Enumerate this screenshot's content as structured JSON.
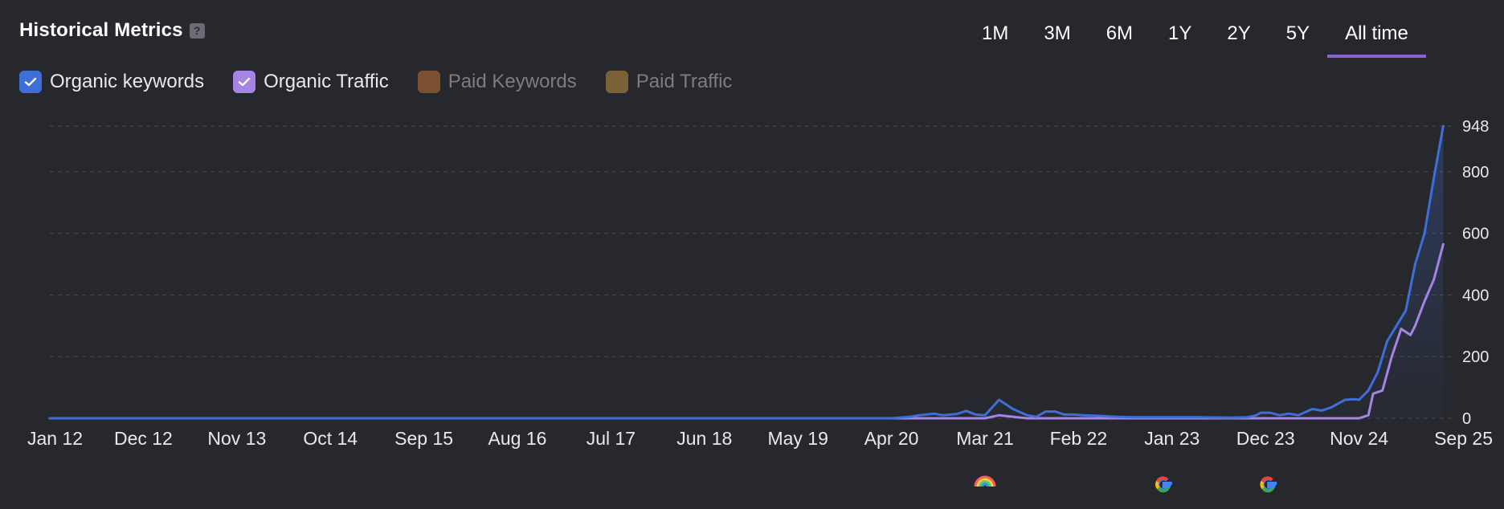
{
  "header": {
    "title": "Historical Metrics",
    "help_glyph": "?"
  },
  "ranges": [
    {
      "label": "1M",
      "active": false
    },
    {
      "label": "3M",
      "active": false
    },
    {
      "label": "6M",
      "active": false
    },
    {
      "label": "1Y",
      "active": false
    },
    {
      "label": "2Y",
      "active": false
    },
    {
      "label": "5Y",
      "active": false
    },
    {
      "label": "All time",
      "active": true
    }
  ],
  "legend": [
    {
      "label": "Organic keywords",
      "checked": true,
      "color": "#3e6fd8"
    },
    {
      "label": "Organic Traffic",
      "checked": true,
      "color": "#a684e6"
    },
    {
      "label": "Paid Keywords",
      "checked": false,
      "color": "#7a5030"
    },
    {
      "label": "Paid Traffic",
      "checked": false,
      "color": "#7a6138"
    }
  ],
  "events": [
    {
      "icon": "rainbow-icon",
      "at": "Mar 21"
    },
    {
      "icon": "google-icon",
      "at": "Jan 23"
    },
    {
      "icon": "google-icon",
      "at": "Dec 23"
    }
  ],
  "chart_data": {
    "type": "line",
    "x_ticks": [
      "Jan 12",
      "Dec 12",
      "Nov 13",
      "Oct 14",
      "Sep 15",
      "Aug 16",
      "Jul 17",
      "Jun 18",
      "May 19",
      "Apr 20",
      "Mar 21",
      "Feb 22",
      "Jan 23",
      "Dec 23",
      "Nov 24",
      "Sep 25"
    ],
    "y_ticks": [
      0,
      200,
      400,
      600,
      800,
      948
    ],
    "ylim": [
      0,
      948
    ],
    "grid": true,
    "series": [
      {
        "name": "Organic keywords",
        "color": "#3e6fd8",
        "points": [
          [
            0,
            0
          ],
          [
            9.0,
            0
          ],
          [
            9.2,
            5
          ],
          [
            9.3,
            10
          ],
          [
            9.45,
            15
          ],
          [
            9.55,
            10
          ],
          [
            9.7,
            14
          ],
          [
            9.8,
            24
          ],
          [
            9.9,
            12
          ],
          [
            10.0,
            10
          ],
          [
            10.15,
            60
          ],
          [
            10.3,
            30
          ],
          [
            10.45,
            10
          ],
          [
            10.55,
            5
          ],
          [
            10.65,
            22
          ],
          [
            10.75,
            22
          ],
          [
            10.85,
            12
          ],
          [
            10.95,
            12
          ],
          [
            11.05,
            10
          ],
          [
            11.2,
            8
          ],
          [
            11.4,
            5
          ],
          [
            11.6,
            3
          ],
          [
            11.8,
            3
          ],
          [
            12.0,
            3
          ],
          [
            12.3,
            3
          ],
          [
            12.6,
            2
          ],
          [
            12.8,
            3
          ],
          [
            12.9,
            10
          ],
          [
            12.95,
            18
          ],
          [
            13.05,
            18
          ],
          [
            13.15,
            10
          ],
          [
            13.25,
            15
          ],
          [
            13.35,
            10
          ],
          [
            13.5,
            30
          ],
          [
            13.6,
            25
          ],
          [
            13.7,
            35
          ],
          [
            13.85,
            60
          ],
          [
            13.95,
            62
          ],
          [
            14.0,
            60
          ],
          [
            14.1,
            90
          ],
          [
            14.2,
            150
          ],
          [
            14.3,
            250
          ],
          [
            14.4,
            300
          ],
          [
            14.5,
            350
          ],
          [
            14.6,
            500
          ],
          [
            14.7,
            600
          ],
          [
            14.8,
            780
          ],
          [
            14.9,
            948
          ]
        ]
      },
      {
        "name": "Organic Traffic",
        "color": "#a684e6",
        "points": [
          [
            0,
            0
          ],
          [
            10.0,
            0
          ],
          [
            10.15,
            10
          ],
          [
            10.3,
            5
          ],
          [
            10.45,
            0
          ],
          [
            14.0,
            0
          ],
          [
            14.05,
            5
          ],
          [
            14.1,
            10
          ],
          [
            14.15,
            80
          ],
          [
            14.25,
            90
          ],
          [
            14.35,
            200
          ],
          [
            14.45,
            290
          ],
          [
            14.55,
            270
          ],
          [
            14.6,
            300
          ],
          [
            14.7,
            380
          ],
          [
            14.8,
            450
          ],
          [
            14.9,
            565
          ]
        ]
      }
    ]
  }
}
